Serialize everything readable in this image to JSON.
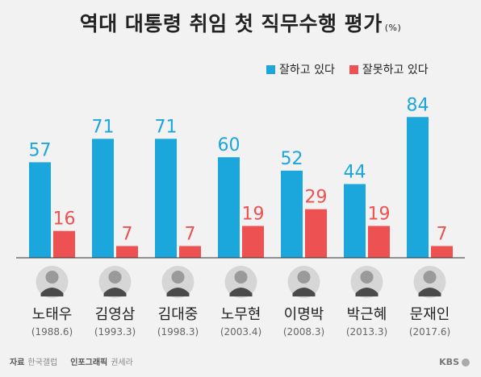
{
  "title": "역대 대통령 취임 첫 직무수행 평가",
  "unit": "(%)",
  "colors": {
    "good": "#1ba6dc",
    "bad": "#ee5151",
    "value_good": "#1ba6dc",
    "value_bad": "#ee5151"
  },
  "chart_data": {
    "type": "bar",
    "categories": [
      "노태우",
      "김영삼",
      "김대중",
      "노무현",
      "이명박",
      "박근혜",
      "문재인"
    ],
    "category_years": [
      "(1988.6)",
      "(1993.3)",
      "(1998.3)",
      "(2003.4)",
      "(2008.3)",
      "(2013.3)",
      "(2017.6)"
    ],
    "series": [
      {
        "name": "잘하고 있다",
        "values": [
          57,
          71,
          71,
          60,
          52,
          44,
          84
        ]
      },
      {
        "name": "잘못하고 있다",
        "values": [
          16,
          7,
          7,
          19,
          29,
          19,
          7
        ]
      }
    ],
    "ylim": [
      0,
      100
    ],
    "grid": false,
    "legend_position": "top-right"
  },
  "footer": {
    "source_label": "자료",
    "source_value": "한국갤럽",
    "graphic_label": "인포그래픽",
    "graphic_value": "권세라",
    "brand": "KBS"
  }
}
